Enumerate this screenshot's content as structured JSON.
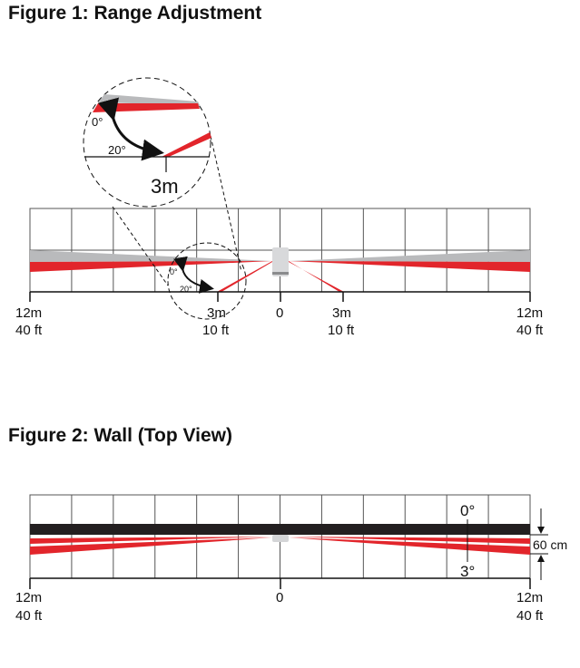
{
  "figure1": {
    "title": "Figure 1: Range Adjustment",
    "left_m": "12m",
    "left_ft": "40 ft",
    "mid_m": "3m",
    "mid_ft": "10 ft",
    "center": "0",
    "right_mid_m": "3m",
    "right_mid_ft": "10 ft",
    "right_m": "12m",
    "right_ft": "40 ft",
    "angle_0": "0°",
    "angle_20": "20°",
    "zoom_label": "3m"
  },
  "figure2": {
    "title": "Figure 2: Wall (Top View)",
    "left_m": "12m",
    "left_ft": "40 ft",
    "center": "0",
    "right_m": "12m",
    "right_ft": "40 ft",
    "angle_0": "0°",
    "angle_3": "3°",
    "height": "60 cm"
  },
  "colors": {
    "beam_red": "#e2252b",
    "beam_grey": "#b9babc",
    "wall": "#231f20",
    "grid": "#555555"
  }
}
